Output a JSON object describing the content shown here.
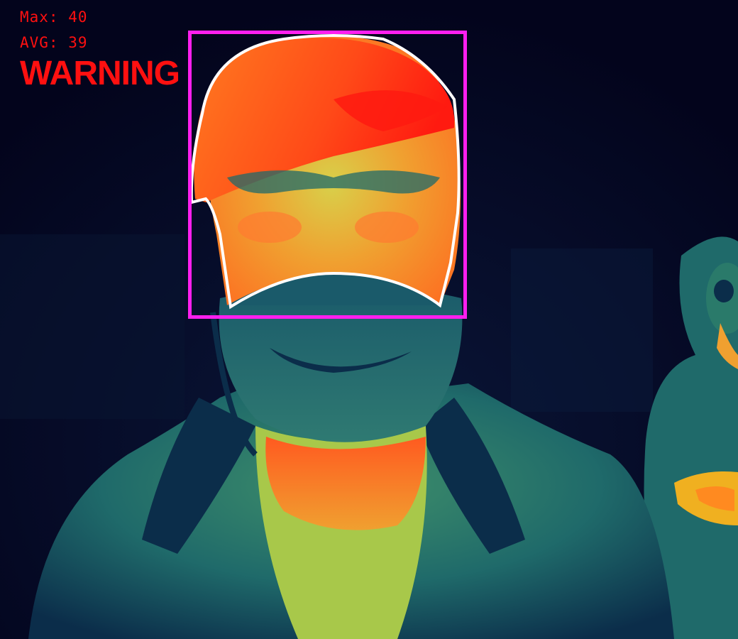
{
  "overlay": {
    "max_label": "Max:",
    "max_value": "40",
    "avg_label": "AVG:",
    "avg_value": "39",
    "alert_text": "WARNING",
    "text_color": "#ff1010",
    "box_color": "#ff1fef",
    "contour_color": "#ffffff"
  },
  "scene": {
    "type": "thermal-camera-feed",
    "palette": [
      "#03041c",
      "#0b2d4a",
      "#1f6a6a",
      "#3f8f6a",
      "#a8c84a",
      "#f0c020",
      "#ff6a20",
      "#ff1a10"
    ]
  }
}
